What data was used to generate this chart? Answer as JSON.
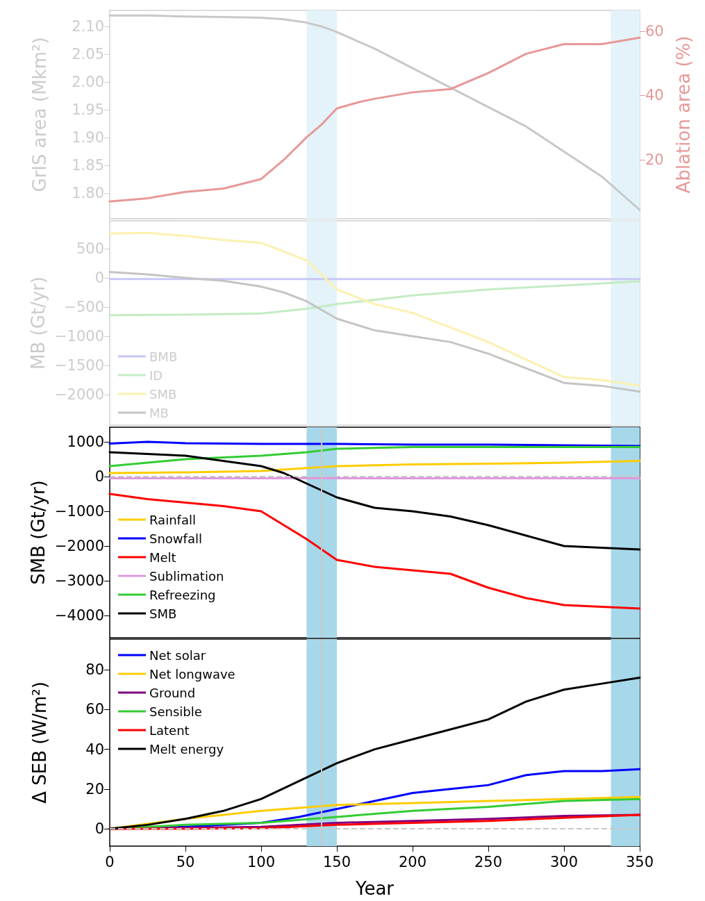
{
  "chart_data": [
    {
      "type": "line",
      "ylabel": "GrIS area (Mkm²)",
      "y2label": "Ablation area (%)",
      "xlim": [
        0,
        350
      ],
      "xticks": [
        0,
        50,
        100,
        150,
        200,
        250,
        300,
        350
      ],
      "ylim": [
        1.754,
        2.129
      ],
      "yticks": [
        {
          "value": 1.8,
          "label": "1.80"
        },
        {
          "value": 1.85,
          "label": "1.85"
        },
        {
          "value": 1.9,
          "label": "1.90"
        },
        {
          "value": 1.95,
          "label": "1.95"
        },
        {
          "value": 2.0,
          "label": "2.00"
        },
        {
          "value": 2.05,
          "label": "2.05"
        },
        {
          "value": 2.1,
          "label": "2.10"
        }
      ],
      "y2lim": [
        1.6,
        66.5
      ],
      "y2ticks": [
        20,
        40,
        60
      ],
      "tick_labels": "y",
      "grid": false,
      "legend": false,
      "bands": [
        {
          "axis": "x",
          "from": 130,
          "to": 150,
          "color": "#e3f3f9"
        },
        {
          "axis": "x",
          "from": 331,
          "to": 350,
          "color": "#e3f3f9"
        }
      ],
      "series": [
        {
          "color": "#c8c8c8",
          "x": [
            0,
            25,
            50,
            75,
            100,
            115,
            130,
            140,
            150,
            175,
            200,
            225,
            250,
            275,
            300,
            325,
            350
          ],
          "values": [
            2.12,
            2.12,
            2.118,
            2.117,
            2.116,
            2.113,
            2.107,
            2.1,
            2.09,
            2.06,
            2.025,
            1.99,
            1.955,
            1.92,
            1.875,
            1.83,
            1.77
          ]
        },
        {
          "color": "#e89898",
          "axis": "y2",
          "x": [
            0,
            25,
            50,
            75,
            100,
            115,
            130,
            140,
            150,
            165,
            175,
            200,
            225,
            250,
            275,
            300,
            325,
            350
          ],
          "values": [
            7,
            8,
            10,
            11,
            14,
            20,
            27,
            31,
            36,
            38,
            39,
            41,
            42,
            47,
            53,
            56,
            56,
            58
          ]
        }
      ]
    },
    {
      "type": "line",
      "ylabel": "MB (Gt/yr)",
      "xlim": [
        0,
        350
      ],
      "xticks": [
        0,
        50,
        100,
        150,
        200,
        250,
        300,
        350
      ],
      "ylim": [
        -2524,
        976
      ],
      "yticks": [
        -2000,
        -1500,
        -1000,
        -500,
        0,
        500
      ],
      "tick_labels": "y",
      "grid": false,
      "legend": "bottom left",
      "bands": [
        {
          "axis": "x",
          "from": 130,
          "to": 150,
          "color": "#e3f3f9"
        },
        {
          "axis": "x",
          "from": 331,
          "to": 350,
          "color": "#e3f3f9"
        }
      ],
      "series": [
        {
          "name": "BMB",
          "color": "#c8c8f6",
          "x": [
            0,
            100,
            200,
            350
          ],
          "values": [
            -20,
            -20,
            -20,
            -20
          ]
        },
        {
          "name": "ID",
          "color": "#c4ecc4",
          "x": [
            0,
            50,
            100,
            130,
            150,
            200,
            250,
            300,
            350
          ],
          "values": [
            -640,
            -630,
            -610,
            -530,
            -450,
            -300,
            -200,
            -130,
            -60
          ]
        },
        {
          "name": "SMB",
          "color": "#fcf0b0",
          "x": [
            0,
            25,
            50,
            75,
            100,
            115,
            130,
            140,
            150,
            175,
            200,
            225,
            250,
            275,
            300,
            325,
            350
          ],
          "values": [
            760,
            770,
            720,
            650,
            600,
            450,
            300,
            50,
            -200,
            -450,
            -600,
            -850,
            -1100,
            -1400,
            -1700,
            -1750,
            -1850
          ]
        },
        {
          "name": "MB",
          "color": "#c4c4c4",
          "x": [
            0,
            25,
            50,
            75,
            100,
            115,
            130,
            140,
            150,
            175,
            200,
            225,
            250,
            275,
            300,
            325,
            350
          ],
          "values": [
            100,
            60,
            0,
            -50,
            -150,
            -250,
            -400,
            -550,
            -700,
            -900,
            -1000,
            -1100,
            -1300,
            -1550,
            -1800,
            -1850,
            -1950
          ]
        }
      ]
    },
    {
      "type": "line",
      "ylabel": "SMB (Gt/yr)",
      "xlim": [
        0,
        350
      ],
      "xticks": [
        0,
        50,
        100,
        150,
        200,
        250,
        300,
        350
      ],
      "ylim": [
        -4640,
        1420
      ],
      "yticks": [
        -4000,
        -3000,
        -2000,
        -1000,
        0,
        1000
      ],
      "tick_labels": "y",
      "grid": false,
      "legend": "left",
      "bands": [
        {
          "axis": "x",
          "from": 130,
          "to": 150,
          "color": "#a6d8ea"
        },
        {
          "axis": "x",
          "from": 331,
          "to": 350,
          "color": "#a6d8ea"
        }
      ],
      "ref_lines": [
        {
          "axis": "x",
          "value": 140,
          "color": "#c8c8c8",
          "line_style": "solid"
        },
        {
          "axis": "y",
          "value": 0,
          "color": "#c8c8c8",
          "line_style": "dashed"
        }
      ],
      "series": [
        {
          "name": "Rainfall",
          "color": "#ffcc00",
          "x": [
            0,
            50,
            100,
            150,
            200,
            250,
            300,
            350
          ],
          "values": [
            100,
            120,
            160,
            300,
            350,
            370,
            400,
            450
          ]
        },
        {
          "name": "Snowfall",
          "color": "#0000ff",
          "x": [
            0,
            25,
            50,
            100,
            150,
            200,
            250,
            300,
            350
          ],
          "values": [
            950,
            1000,
            960,
            940,
            940,
            920,
            920,
            900,
            880
          ]
        },
        {
          "name": "Melt",
          "color": "#ff0000",
          "x": [
            0,
            25,
            50,
            75,
            100,
            115,
            130,
            140,
            150,
            175,
            200,
            225,
            250,
            275,
            300,
            325,
            350
          ],
          "values": [
            -500,
            -650,
            -750,
            -850,
            -1000,
            -1400,
            -1800,
            -2100,
            -2400,
            -2600,
            -2700,
            -2800,
            -3200,
            -3500,
            -3700,
            -3750,
            -3800
          ]
        },
        {
          "name": "Sublimation",
          "color": "#dd99dd",
          "x": [
            0,
            100,
            200,
            350
          ],
          "values": [
            -50,
            -50,
            -50,
            -50
          ]
        },
        {
          "name": "Refreezing",
          "color": "#33cc33",
          "x": [
            0,
            25,
            50,
            75,
            100,
            130,
            150,
            200,
            250,
            300,
            350
          ],
          "values": [
            300,
            400,
            500,
            550,
            600,
            700,
            800,
            850,
            850,
            850,
            850
          ]
        },
        {
          "name": "SMB",
          "color": "#000000",
          "x": [
            0,
            25,
            50,
            75,
            100,
            115,
            130,
            140,
            150,
            175,
            200,
            225,
            250,
            275,
            300,
            325,
            350
          ],
          "values": [
            700,
            650,
            600,
            450,
            300,
            100,
            -200,
            -400,
            -600,
            -900,
            -1000,
            -1150,
            -1400,
            -1700,
            -2000,
            -2050,
            -2100
          ]
        }
      ]
    },
    {
      "type": "line",
      "ylabel": "Δ SEB (W/m²)",
      "xlabel": "Year",
      "xlim": [
        0,
        350
      ],
      "xticks": [
        0,
        50,
        100,
        150,
        200,
        250,
        300,
        350
      ],
      "ylim": [
        -8.7,
        95.4
      ],
      "yticks": [
        0,
        20,
        40,
        60,
        80
      ],
      "grid": false,
      "legend": "top left",
      "bands": [
        {
          "axis": "x",
          "from": 130,
          "to": 150,
          "color": "#a6d8ea"
        },
        {
          "axis": "x",
          "from": 331,
          "to": 350,
          "color": "#a6d8ea"
        }
      ],
      "ref_lines": [
        {
          "axis": "x",
          "value": 140,
          "color": "#c8c8c8",
          "line_style": "solid"
        },
        {
          "axis": "y",
          "value": 0,
          "color": "#c8c8c8",
          "line_style": "dashed"
        }
      ],
      "series": [
        {
          "name": "Net solar",
          "color": "#0000ff",
          "x": [
            0,
            50,
            100,
            125,
            150,
            175,
            200,
            225,
            250,
            275,
            300,
            325,
            350
          ],
          "values": [
            0,
            1,
            3,
            6,
            10,
            14,
            18,
            20,
            22,
            27,
            29,
            29,
            30
          ]
        },
        {
          "name": "Net longwave",
          "color": "#ffcc00",
          "x": [
            0,
            50,
            100,
            150,
            200,
            250,
            300,
            350
          ],
          "values": [
            0,
            5,
            9,
            12,
            13,
            14,
            15,
            16
          ]
        },
        {
          "name": "Ground",
          "color": "#800080",
          "x": [
            0,
            50,
            100,
            150,
            200,
            250,
            300,
            350
          ],
          "values": [
            0,
            0.5,
            1,
            3,
            4,
            5,
            6.5,
            7
          ]
        },
        {
          "name": "Sensible",
          "color": "#33cc33",
          "x": [
            0,
            50,
            100,
            150,
            200,
            250,
            300,
            350
          ],
          "values": [
            0,
            2,
            3,
            6,
            9,
            11,
            14,
            15
          ]
        },
        {
          "name": "Latent",
          "color": "#ff0000",
          "x": [
            0,
            50,
            100,
            150,
            200,
            250,
            300,
            350
          ],
          "values": [
            0,
            0,
            0.3,
            2,
            3,
            4,
            5.5,
            7
          ]
        },
        {
          "name": "Melt energy",
          "color": "#000000",
          "x": [
            0,
            25,
            50,
            75,
            100,
            125,
            150,
            175,
            200,
            225,
            250,
            275,
            300,
            325,
            350
          ],
          "values": [
            0,
            2,
            5,
            9,
            15,
            24,
            33,
            40,
            45,
            50,
            55,
            64,
            70,
            73,
            76
          ]
        }
      ]
    }
  ]
}
